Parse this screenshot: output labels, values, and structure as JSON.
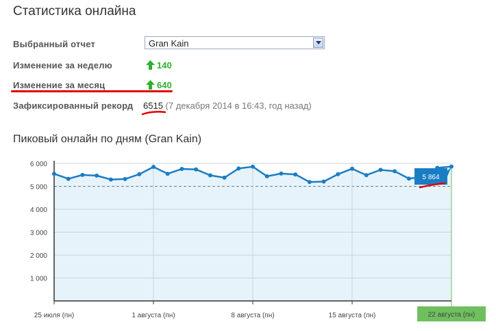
{
  "page_title": "Статистика онлайна",
  "stats": {
    "report_label": "Выбранный отчет",
    "report_selected": "Gran Kain",
    "week_label": "Изменение за неделю",
    "week_value": "140",
    "month_label": "Изменение за месяц",
    "month_value": "640",
    "record_label": "Зафиксированный рекорд",
    "record_value": "6515",
    "record_note": "(7 декабря 2014 в 16:43, год назад)"
  },
  "colors": {
    "up": "#2db12d",
    "line": "#1a7dc4",
    "fill": "#e6f3fb",
    "tooltip": "#1a7dc4",
    "last_label_bg": "#6fbf5f",
    "annotation": "#e00000"
  },
  "icons": [
    "up-arrow-icon",
    "chevron-down-icon"
  ],
  "chart_data": {
    "type": "area",
    "title": "Пиковый онлайн по дням (Gran Kain)",
    "x": [
      "25 июля (пн)",
      "26 июля",
      "27 июля",
      "28 июля",
      "29 июля",
      "30 июля",
      "31 июля",
      "1 августа (пн)",
      "2 августа",
      "3 августа",
      "4 августа",
      "5 августа",
      "6 августа",
      "7 августа",
      "8 августа (пн)",
      "9 августа",
      "10 августа",
      "11 августа",
      "12 августа",
      "13 августа",
      "14 августа",
      "15 августа (пн)",
      "16 августа",
      "17 августа",
      "18 августа",
      "19 августа",
      "20 августа",
      "21 августа",
      "22 августа (пн)"
    ],
    "y": [
      5550,
      5330,
      5500,
      5470,
      5300,
      5320,
      5530,
      5850,
      5550,
      5760,
      5740,
      5480,
      5380,
      5780,
      5860,
      5440,
      5560,
      5520,
      5190,
      5210,
      5530,
      5770,
      5490,
      5720,
      5660,
      5340,
      5410,
      5810,
      5864
    ],
    "x_tick_labels": [
      "25 июля (пн)",
      "1 августа (пн)",
      "8 августа (пн)",
      "15 августа (пн)",
      "22 августа (пн)"
    ],
    "y_tick_labels": [
      "1 000",
      "2 000",
      "3 000",
      "4 000",
      "5 000",
      "6 000"
    ],
    "ylim": [
      0,
      6000
    ],
    "reference_line": 5000,
    "tooltip_value": "5 864",
    "grid": true
  }
}
